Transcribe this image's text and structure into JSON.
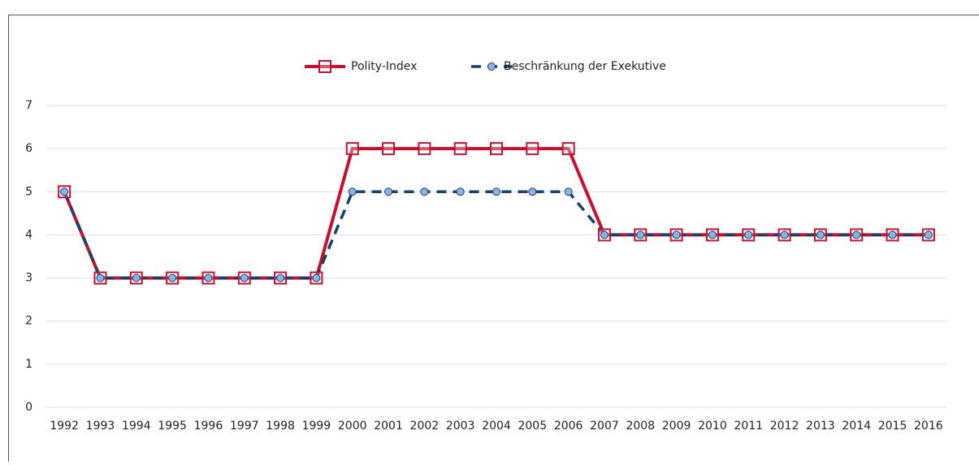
{
  "chart_data": {
    "type": "line",
    "categories": [
      "1992",
      "1993",
      "1994",
      "1995",
      "1996",
      "1997",
      "1998",
      "1999",
      "2000",
      "2001",
      "2002",
      "2003",
      "2004",
      "2005",
      "2006",
      "2007",
      "2008",
      "2009",
      "2010",
      "2011",
      "2012",
      "2013",
      "2014",
      "2015",
      "2016"
    ],
    "series": [
      {
        "name": "Polity-Index",
        "color": "#c8102e",
        "marker": "square",
        "dashed": false,
        "values": [
          5,
          3,
          3,
          3,
          3,
          3,
          3,
          3,
          6,
          6,
          6,
          6,
          6,
          6,
          6,
          4,
          4,
          4,
          4,
          4,
          4,
          4,
          4,
          4,
          4
        ]
      },
      {
        "name": "Beschränkung der Exekutive",
        "color": "#17406d",
        "marker": "circle",
        "dashed": true,
        "values": [
          5,
          3,
          3,
          3,
          3,
          3,
          3,
          3,
          5,
          5,
          5,
          5,
          5,
          5,
          5,
          4,
          4,
          4,
          4,
          4,
          4,
          4,
          4,
          4,
          4
        ]
      }
    ],
    "ylim": [
      0,
      7
    ],
    "yticks": [
      0,
      1,
      2,
      3,
      4,
      5,
      6,
      7
    ],
    "grid": true,
    "legend": "top"
  }
}
